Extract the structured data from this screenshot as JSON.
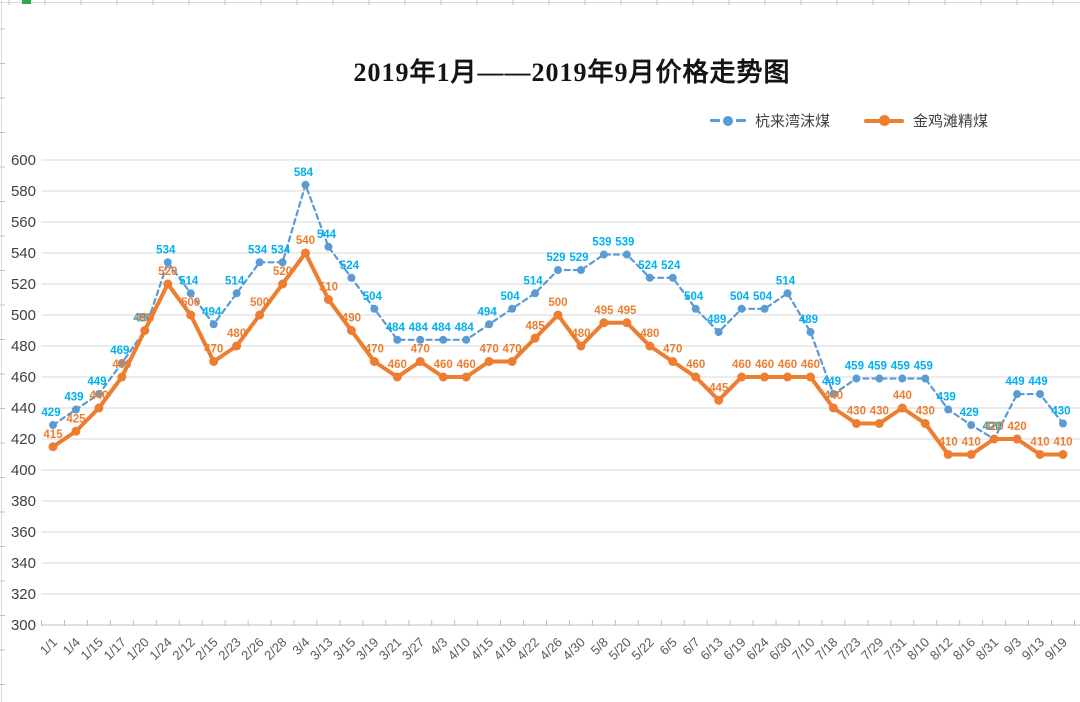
{
  "chart_data": {
    "type": "line",
    "title": "2019年1月——2019年9月价格走势图",
    "categories": [
      "1/1",
      "1/4",
      "1/15",
      "1/17",
      "1/20",
      "1/24",
      "2/12",
      "2/15",
      "2/23",
      "2/26",
      "2/28",
      "3/4",
      "3/13",
      "3/15",
      "3/19",
      "3/21",
      "3/27",
      "4/3",
      "4/10",
      "4/15",
      "4/18",
      "4/22",
      "4/26",
      "4/30",
      "5/8",
      "5/20",
      "5/22",
      "6/5",
      "6/7",
      "6/13",
      "6/19",
      "6/24",
      "6/30",
      "7/10",
      "7/18",
      "7/23",
      "7/29",
      "7/31",
      "8/10",
      "8/12",
      "8/16",
      "8/31",
      "9/3",
      "9/13",
      "9/19"
    ],
    "series": [
      {
        "name": "杭来湾沫煤",
        "line_style": "dashed",
        "color": "#5B9BD5",
        "label_color": "#00B0F0",
        "values": [
          429,
          439,
          449,
          469,
          490,
          534,
          514,
          494,
          514,
          534,
          534,
          584,
          544,
          524,
          504,
          484,
          484,
          484,
          484,
          494,
          504,
          514,
          529,
          529,
          539,
          539,
          524,
          524,
          504,
          489,
          504,
          504,
          514,
          489,
          449,
          459,
          459,
          459,
          459,
          439,
          429,
          420,
          449,
          449,
          430
        ]
      },
      {
        "name": "金鸡滩精煤",
        "line_style": "solid",
        "color": "#ED7D31",
        "label_color": "#ED7D31",
        "values": [
          415,
          425,
          440,
          460,
          490,
          520,
          500,
          470,
          480,
          500,
          520,
          540,
          510,
          490,
          470,
          460,
          470,
          460,
          460,
          470,
          470,
          485,
          500,
          480,
          495,
          495,
          480,
          470,
          460,
          445,
          460,
          460,
          460,
          460,
          440,
          430,
          430,
          440,
          430,
          410,
          410,
          420,
          420,
          410,
          410
        ]
      }
    ],
    "ylim": [
      300,
      600
    ],
    "ytick_step": 20,
    "yticks": [
      300,
      320,
      340,
      360,
      380,
      400,
      420,
      440,
      460,
      480,
      500,
      520,
      540,
      560,
      580,
      600
    ],
    "grid": true,
    "data_labels": true,
    "legend_position": "top-right"
  },
  "axes": {
    "grid_color": "#D9D9D9",
    "axis_color": "#BFBFBF",
    "y_label_color": "#404040",
    "x_label_color": "#595959"
  },
  "decor": {
    "frame_line_color": "#D9D9D9",
    "frame_tick_color": "#C0C0C0",
    "accent_color": "#2FA84F"
  }
}
